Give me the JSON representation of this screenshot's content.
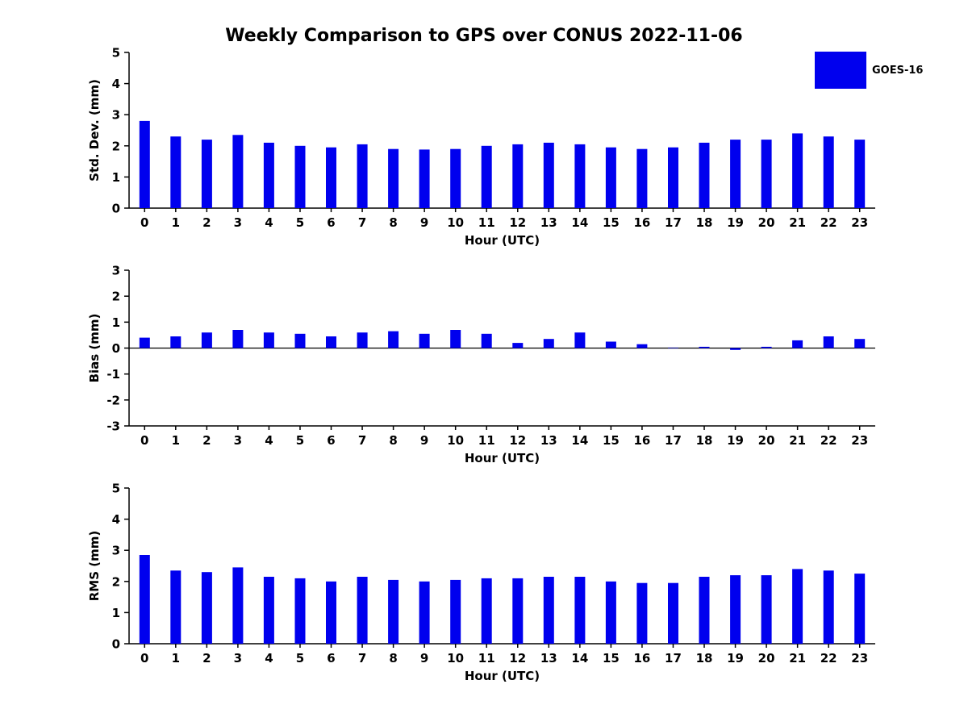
{
  "title": "Weekly Comparison to GPS over CONUS 2022-11-06",
  "legend": {
    "label": "GOES-16",
    "color": "#0000ee"
  },
  "chart_data": [
    {
      "type": "bar",
      "name": "std-dev",
      "categories": [
        "0",
        "1",
        "2",
        "3",
        "4",
        "5",
        "6",
        "7",
        "8",
        "9",
        "10",
        "11",
        "12",
        "13",
        "14",
        "15",
        "16",
        "17",
        "18",
        "19",
        "20",
        "21",
        "22",
        "23"
      ],
      "values": [
        2.8,
        2.3,
        2.2,
        2.35,
        2.1,
        2.0,
        1.95,
        2.05,
        1.9,
        1.88,
        1.9,
        2.0,
        2.05,
        2.1,
        2.05,
        1.95,
        1.9,
        1.95,
        2.1,
        2.2,
        2.2,
        2.4,
        2.3,
        2.2
      ],
      "xlabel": "Hour (UTC)",
      "ylabel": "Std. Dev. (mm)",
      "ylim": [
        0,
        5
      ],
      "yticks": [
        0,
        1,
        2,
        3,
        4,
        5
      ],
      "grid": false,
      "series_name": "GOES-16"
    },
    {
      "type": "bar",
      "name": "bias",
      "categories": [
        "0",
        "1",
        "2",
        "3",
        "4",
        "5",
        "6",
        "7",
        "8",
        "9",
        "10",
        "11",
        "12",
        "13",
        "14",
        "15",
        "16",
        "17",
        "18",
        "19",
        "20",
        "21",
        "22",
        "23"
      ],
      "values": [
        0.4,
        0.45,
        0.6,
        0.7,
        0.6,
        0.55,
        0.45,
        0.6,
        0.65,
        0.55,
        0.7,
        0.55,
        0.2,
        0.35,
        0.6,
        0.25,
        0.15,
        0.02,
        0.05,
        -0.07,
        0.05,
        0.3,
        0.45,
        0.35
      ],
      "xlabel": "Hour (UTC)",
      "ylabel": "Bias (mm)",
      "ylim": [
        -3,
        3
      ],
      "yticks": [
        -3,
        -2,
        -1,
        0,
        1,
        2,
        3
      ],
      "grid": false,
      "zero_line": true,
      "series_name": "GOES-16"
    },
    {
      "type": "bar",
      "name": "rms",
      "categories": [
        "0",
        "1",
        "2",
        "3",
        "4",
        "5",
        "6",
        "7",
        "8",
        "9",
        "10",
        "11",
        "12",
        "13",
        "14",
        "15",
        "16",
        "17",
        "18",
        "19",
        "20",
        "21",
        "22",
        "23"
      ],
      "values": [
        2.85,
        2.35,
        2.3,
        2.45,
        2.15,
        2.1,
        2.0,
        2.15,
        2.05,
        2.0,
        2.05,
        2.1,
        2.1,
        2.15,
        2.15,
        2.0,
        1.95,
        1.95,
        2.15,
        2.2,
        2.2,
        2.4,
        2.35,
        2.25
      ],
      "xlabel": "Hour (UTC)",
      "ylabel": "RMS (mm)",
      "ylim": [
        0,
        5
      ],
      "yticks": [
        0,
        1,
        2,
        3,
        4,
        5
      ],
      "grid": false,
      "series_name": "GOES-16"
    }
  ]
}
